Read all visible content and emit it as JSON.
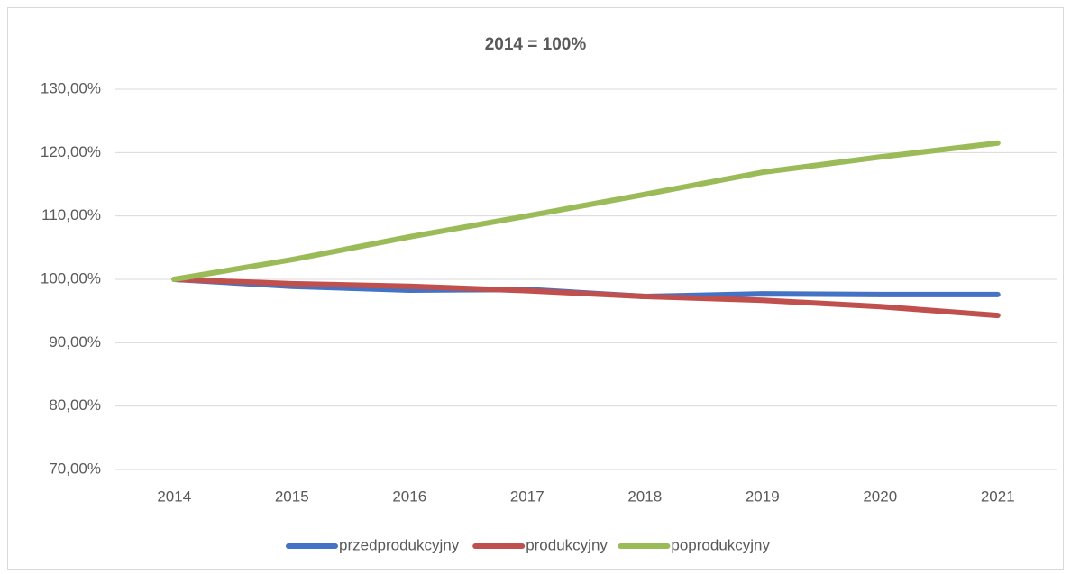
{
  "chart_data": {
    "type": "line",
    "title": "2014 = 100%",
    "categories": [
      "2014",
      "2015",
      "2016",
      "2017",
      "2018",
      "2019",
      "2020",
      "2021"
    ],
    "series": [
      {
        "name": "przedprodukcyjny",
        "color": "#4472c4",
        "values": [
          100,
          98.9,
          98.3,
          98.4,
          97.3,
          97.7,
          97.6,
          97.6
        ]
      },
      {
        "name": "produkcyjny",
        "color": "#c0504d",
        "values": [
          100,
          99.3,
          98.9,
          98.2,
          97.3,
          96.7,
          95.7,
          94.3
        ]
      },
      {
        "name": "poprodukcyjny",
        "color": "#9bbb59",
        "values": [
          100,
          103.1,
          106.7,
          110.0,
          113.4,
          116.9,
          119.3,
          121.5
        ]
      }
    ],
    "ylim": [
      70,
      130
    ],
    "yticks": [
      {
        "value": 70,
        "label": "70,00%"
      },
      {
        "value": 80,
        "label": "80,00%"
      },
      {
        "value": 90,
        "label": "90,00%"
      },
      {
        "value": 100,
        "label": "100,00%"
      },
      {
        "value": 110,
        "label": "110,00%"
      },
      {
        "value": 120,
        "label": "120,00%"
      },
      {
        "value": 130,
        "label": "130,00%"
      }
    ],
    "grid": true,
    "legend": "bottom"
  }
}
